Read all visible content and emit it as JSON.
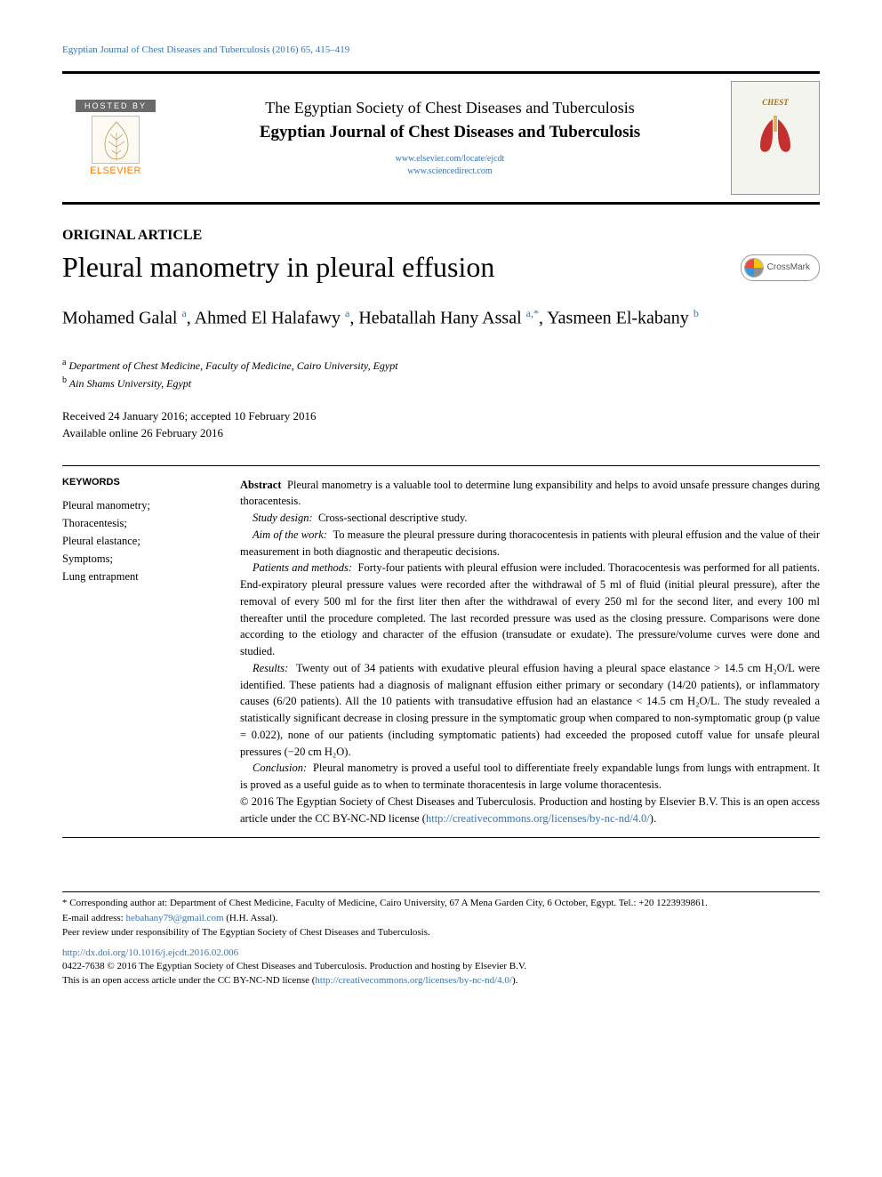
{
  "runhead": "Egyptian Journal of Chest Diseases and Tuberculosis (2016) 65, 415–419",
  "header": {
    "hosted_by": "HOSTED BY",
    "elsevier": "ELSEVIER",
    "society": "The Egyptian Society of Chest Diseases and Tuberculosis",
    "journal": "Egyptian Journal of Chest Diseases and Tuberculosis",
    "link1": "www.elsevier.com/locate/ejcdt",
    "link2": "www.sciencedirect.com",
    "cover_title": "CHEST"
  },
  "article_type": "ORIGINAL ARTICLE",
  "title": "Pleural manometry in pleural effusion",
  "crossmark": "CrossMark",
  "authors_html": "Mohamed Galal <sup>a</sup>, Ahmed El Halafawy <sup>a</sup>, Hebatallah Hany Assal <sup>a,*</sup>, Yasmeen El-kabany <sup>b</sup>",
  "affils": {
    "a": "Department of Chest Medicine, Faculty of Medicine, Cairo University, Egypt",
    "b": "Ain Shams University, Egypt"
  },
  "dates": {
    "line1": "Received 24 January 2016; accepted 10 February 2016",
    "line2": "Available online 26 February 2016"
  },
  "keywords_head": "KEYWORDS",
  "keywords": "Pleural manometry;\nThoracentesis;\nPleural elastance;\nSymptoms;\nLung entrapment",
  "abstract": {
    "lead_label": "Abstract",
    "lead": "Pleural manometry is a valuable tool to determine lung expansibility and helps to avoid unsafe pressure changes during thoracentesis.",
    "design_label": "Study design:",
    "design": "Cross-sectional descriptive study.",
    "aim_label": "Aim of the work:",
    "aim": "To measure the pleural pressure during thoracocentesis in patients with pleural effusion and the value of their measurement in both diagnostic and therapeutic decisions.",
    "methods_label": "Patients and methods:",
    "methods": "Forty-four patients with pleural effusion were included. Thoracocentesis was performed for all patients. End-expiratory pleural pressure values were recorded after the withdrawal of 5 ml of fluid (initial pleural pressure), after the removal of every 500 ml for the first liter then after the withdrawal of every 250 ml for the second liter, and every 100 ml thereafter until the procedure completed. The last recorded pressure was used as the closing pressure. Comparisons were done according to the etiology and character of the effusion (transudate or exudate). The pressure/volume curves were done and studied.",
    "results_label": "Results:",
    "results": "Twenty out of 34 patients with exudative pleural effusion having a pleural space elastance > 14.5 cm H₂O/L were identified. These patients had a diagnosis of malignant effusion either primary or secondary (14/20 patients), or inflammatory causes (6/20 patients). All the 10 patients with transudative effusion had an elastance < 14.5 cm H₂O/L. The study revealed a statistically significant decrease in closing pressure in the symptomatic group when compared to non-symptomatic group (p value = 0.022), none of our patients (including symptomatic patients) had exceeded the proposed cutoff value for unsafe pleural pressures (−20 cm H₂O).",
    "conclusion_label": "Conclusion:",
    "conclusion": "Pleural manometry is proved a useful tool to differentiate freely expandable lungs from lungs with entrapment. It is proved as a useful guide as to when to terminate thoracentesis in large volume thoracentesis.",
    "copyright": "© 2016 The Egyptian Society of Chest Diseases and Tuberculosis. Production and hosting by Elsevier B.V. This is an open access article under the CC BY-NC-ND license (",
    "license_url": "http://creativecommons.org/licenses/by-nc-nd/4.0/",
    "license_close": ")."
  },
  "footnotes": {
    "corr": "* Corresponding author at: Department of Chest Medicine, Faculty of Medicine, Cairo University, 67 A Mena Garden City, 6 October, Egypt. Tel.: +20 1223939861.",
    "email_label": "E-mail address: ",
    "email": "hebahany79@gmail.com",
    "email_tail": " (H.H. Assal).",
    "peer": "Peer review under responsibility of The Egyptian Society of Chest Diseases and Tuberculosis."
  },
  "doi": "http://dx.doi.org/10.1016/j.ejcdt.2016.02.006",
  "bottom": {
    "issn_copy": "0422-7638 © 2016 The Egyptian Society of Chest Diseases and Tuberculosis. Production and hosting by Elsevier B.V.",
    "lic_lead": "This is an open access article under the CC BY-NC-ND license (",
    "lic_url": "http://creativecommons.org/licenses/by-nc-nd/4.0/",
    "lic_close": ")."
  },
  "colors": {
    "link": "#3773b5",
    "elsevier_orange": "#ff7a00",
    "rule": "#000000",
    "cover_title": "#a36b0f"
  }
}
